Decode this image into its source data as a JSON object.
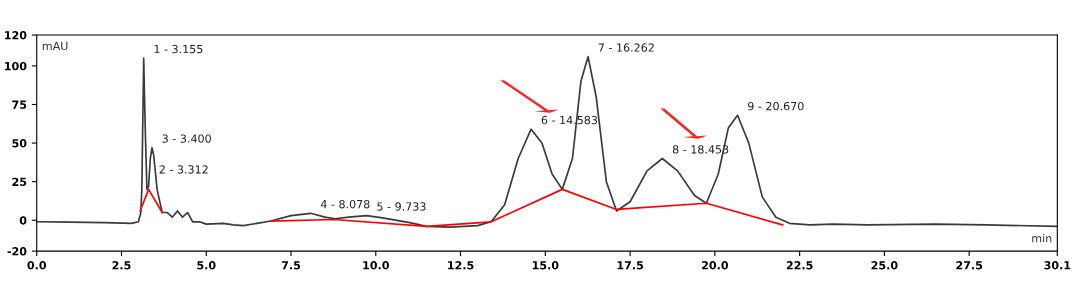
{
  "chart_data": {
    "type": "line",
    "xlabel": "min",
    "ylabel": "mAU",
    "xlim": [
      0,
      30.1
    ],
    "xticks": [
      {
        "value": 0,
        "label": "0.0"
      },
      2.5,
      {
        "value": 5,
        "label": "5.0"
      },
      7.5,
      {
        "value": 10,
        "label": "10.0"
      },
      12.5,
      {
        "value": 15,
        "label": "15.0"
      },
      17.5,
      {
        "value": 20,
        "label": "20.0"
      },
      22.5,
      {
        "value": 25,
        "label": "25.0"
      },
      27.5,
      30.1
    ],
    "ylim": [
      -20,
      120
    ],
    "yticks": [
      -20,
      0,
      25,
      50,
      75,
      100,
      120
    ],
    "grid": false,
    "legend": false,
    "marker": "none",
    "line_style": "solid",
    "series": [
      {
        "color": "#3a3a3a",
        "x": [
          0,
          1,
          2,
          2.8,
          3.0,
          3.07,
          3.1,
          3.155,
          3.2,
          3.25,
          3.3,
          3.35,
          3.4,
          3.45,
          3.55,
          3.7,
          3.85,
          4.0,
          4.15,
          4.3,
          4.45,
          4.6,
          4.8,
          5.0,
          5.5,
          5.8,
          6.1,
          6.5,
          6.9,
          7.5,
          8.08,
          8.5,
          8.8,
          9.2,
          9.73,
          10.2,
          11,
          11.5,
          12.2,
          13,
          13.4,
          13.8,
          14.2,
          14.58,
          14.9,
          15.2,
          15.5,
          15.8,
          16.05,
          16.26,
          16.5,
          16.8,
          17.1,
          17.5,
          18.0,
          18.45,
          18.9,
          19.4,
          19.75,
          20.1,
          20.4,
          20.67,
          21.0,
          21.4,
          21.8,
          22.2,
          22.8,
          23.5,
          24.5,
          26.5,
          28,
          30.1
        ],
        "values": [
          -1,
          -1.2,
          -1.5,
          -2,
          -1,
          5,
          20,
          105,
          60,
          20,
          22,
          40,
          47,
          42,
          20,
          5,
          5,
          2,
          6,
          2,
          5,
          -1,
          -1,
          -2.5,
          -2,
          -3,
          -3.5,
          -2,
          -0.5,
          3,
          4.5,
          2,
          1,
          2,
          3,
          1.5,
          -1.5,
          -4,
          -4.5,
          -3.5,
          -1,
          10,
          40,
          59,
          50,
          30,
          20,
          40,
          90,
          106,
          80,
          25,
          6,
          12,
          32,
          40,
          32,
          16,
          11,
          30,
          60,
          68,
          50,
          15,
          2,
          -2,
          -3,
          -2.5,
          -3,
          -2.5,
          -3,
          -4
        ]
      },
      {
        "color": "#ff0000",
        "x": [
          3.05,
          3.3,
          3.7,
          5.0,
          6.9,
          8.75,
          11.5,
          13.4,
          15.5,
          17.1,
          19.75,
          22.0
        ],
        "values": [
          6,
          20,
          5,
          null,
          -0.5,
          0.5,
          -4,
          -1,
          20,
          7,
          11,
          -3
        ]
      }
    ],
    "annotations": [
      {
        "text": "1 - 3.155",
        "x": 3.155,
        "y": 105
      },
      {
        "text": "2 - 3.312",
        "x": 3.312,
        "y": 27
      },
      {
        "text": "3 - 3.400",
        "x": 3.4,
        "y": 47
      },
      {
        "text": "4 - 8.078",
        "x": 8.078,
        "y": 4.5
      },
      {
        "text": "5 - 9.733",
        "x": 9.733,
        "y": 3
      },
      {
        "text": "6 - 14.583",
        "x": 14.583,
        "y": 59
      },
      {
        "text": "7 - 16.262",
        "x": 16.262,
        "y": 106
      },
      {
        "text": "8 - 18.453",
        "x": 18.453,
        "y": 40
      },
      {
        "text": "9 - 20.670",
        "x": 20.67,
        "y": 68
      }
    ]
  }
}
